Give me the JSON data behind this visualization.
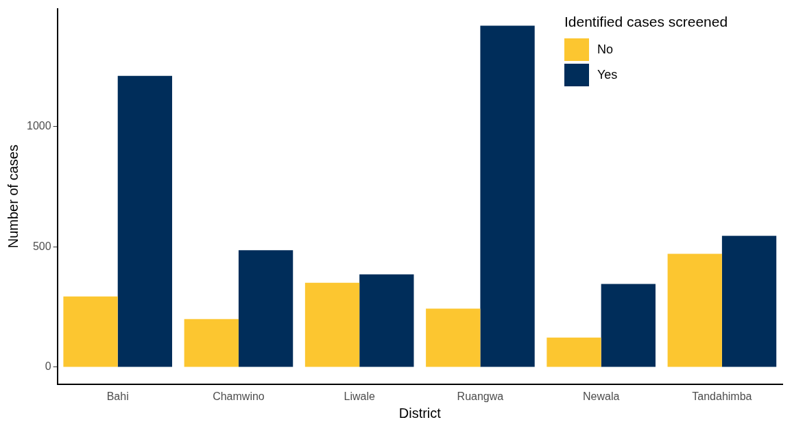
{
  "chart_data": {
    "type": "bar",
    "xlabel": "District",
    "ylabel": "Number of cases",
    "legend_title": "Identified cases screened",
    "categories": [
      "Bahi",
      "Chamwino",
      "Liwale",
      "Ruangwa",
      "Newala",
      "Tandahimba"
    ],
    "series": [
      {
        "name": "No",
        "color": "#fcc630",
        "values": [
          294,
          200,
          351,
          243,
          123,
          471
        ]
      },
      {
        "name": "Yes",
        "color": "#002d5a",
        "values": [
          1211,
          486,
          386,
          1420,
          346,
          546
        ]
      }
    ],
    "ylim": [
      -71,
      1491
    ],
    "yticks": [
      0,
      500,
      1000
    ],
    "grid": false,
    "legend": "top right"
  }
}
